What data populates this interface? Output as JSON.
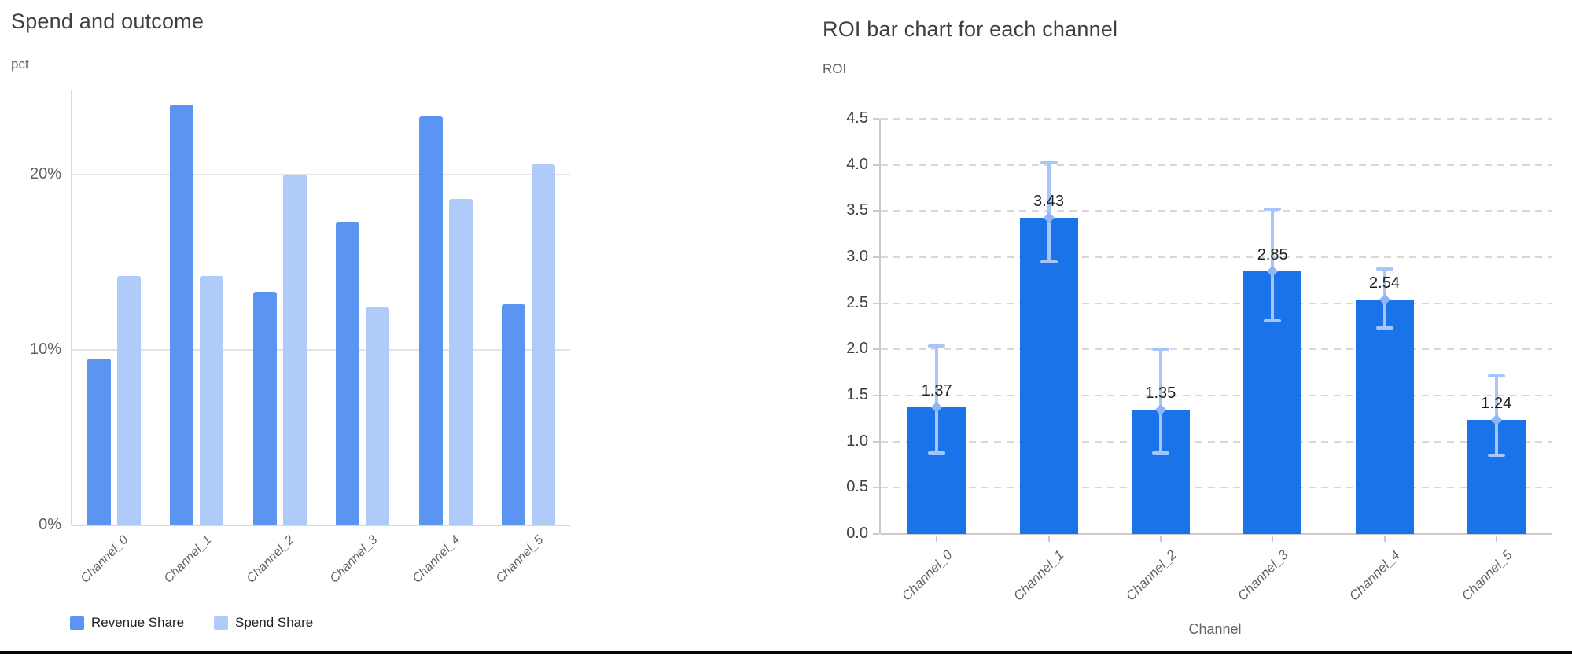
{
  "page": {
    "background": "#ffffff",
    "bottom_rule_color": "#060606"
  },
  "colors": {
    "revenue_share": "#5B94F1",
    "spend_share": "#AECBFA",
    "roi_bar": "#1A73E8",
    "error_bar": "#A6C5FA",
    "error_mean_marker": "#8FB5F7",
    "title_text": "#3C4043",
    "axis_unit_text": "#5F6368",
    "tick_text_left": "#616161",
    "tick_text_right": "#3C4043",
    "category_text": "#616161",
    "value_label_text": "#1F1F1F",
    "grid_solid": "#E2E4E8",
    "grid_dashed": "#D8D8D8"
  },
  "chart_data": [
    {
      "type": "bar",
      "title": "Spend and outcome",
      "xlabel": "",
      "ylabel": "pct",
      "categories": [
        "Channel_0",
        "Channel_1",
        "Channel_2",
        "Channel_3",
        "Channel_4",
        "Channel_5"
      ],
      "series": [
        {
          "name": "Revenue Share",
          "color": "#5B94F1",
          "values": [
            9.5,
            24.0,
            13.3,
            17.3,
            23.3,
            12.6
          ]
        },
        {
          "name": "Spend Share",
          "color": "#AECBFA",
          "values": [
            14.2,
            14.2,
            20.0,
            12.4,
            18.6,
            20.6
          ]
        }
      ],
      "y_ticks": [
        {
          "value": 0,
          "label": "0%"
        },
        {
          "value": 10,
          "label": "10%"
        },
        {
          "value": 20,
          "label": "20%"
        }
      ],
      "ylim": [
        0,
        24.8
      ],
      "grid": "solid horizontal",
      "legend_position": "bottom-left"
    },
    {
      "type": "bar",
      "title": "ROI bar chart for each channel",
      "xlabel": "Channel",
      "ylabel": "ROI",
      "categories": [
        "Channel_0",
        "Channel_1",
        "Channel_2",
        "Channel_3",
        "Channel_4",
        "Channel_5"
      ],
      "values": [
        1.37,
        3.43,
        1.35,
        2.85,
        2.54,
        1.24
      ],
      "value_labels": [
        "1.37",
        "3.43",
        "1.35",
        "2.85",
        "2.54",
        "1.24"
      ],
      "error_low": [
        0.88,
        2.95,
        0.88,
        2.31,
        2.23,
        0.85
      ],
      "error_high": [
        2.04,
        4.02,
        2.0,
        3.52,
        2.87,
        1.71
      ],
      "bar_color": "#1A73E8",
      "error_bar_color": "#A6C5FA",
      "y_ticks": [
        {
          "value": 0.0,
          "label": "0.0"
        },
        {
          "value": 0.5,
          "label": "0.5"
        },
        {
          "value": 1.0,
          "label": "1.0"
        },
        {
          "value": 1.5,
          "label": "1.5"
        },
        {
          "value": 2.0,
          "label": "2.0"
        },
        {
          "value": 2.5,
          "label": "2.5"
        },
        {
          "value": 3.0,
          "label": "3.0"
        },
        {
          "value": 3.5,
          "label": "3.5"
        },
        {
          "value": 4.0,
          "label": "4.0"
        },
        {
          "value": 4.5,
          "label": "4.5"
        }
      ],
      "ylim": [
        0,
        4.5
      ],
      "grid": "dashed horizontal",
      "legend_position": "none"
    }
  ]
}
